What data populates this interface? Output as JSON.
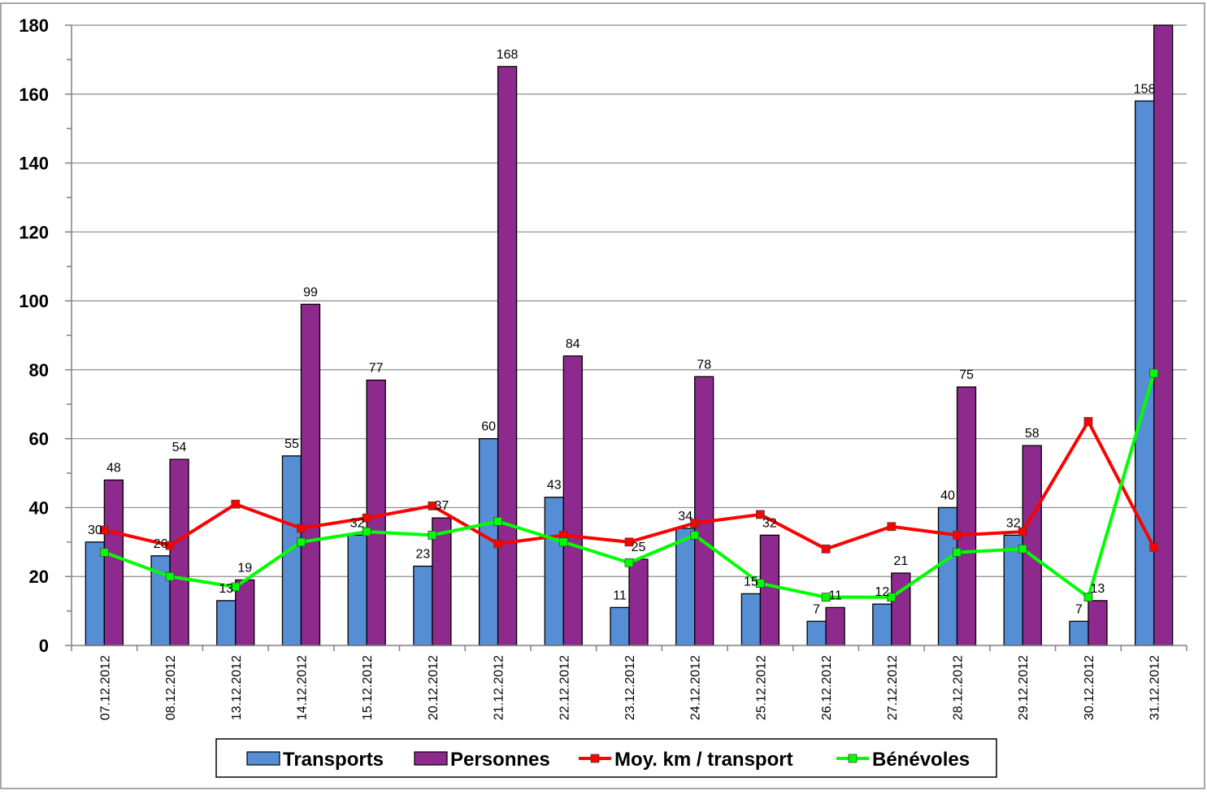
{
  "chart_data": {
    "type": "bar",
    "title": "",
    "xlabel": "",
    "ylabel": "",
    "ylim": [
      0,
      180
    ],
    "yticks": [
      0,
      20,
      40,
      60,
      80,
      100,
      120,
      140,
      160,
      180
    ],
    "ytick_labels": [
      "0",
      "20",
      "40",
      "60",
      "80",
      "100",
      "120",
      "140",
      "160",
      "180"
    ],
    "grid": true,
    "legend_position": "bottom",
    "categories": [
      "07.12.2012",
      "08.12.2012",
      "13.12.2012",
      "14.12.2012",
      "15.12.2012",
      "20.12.2012",
      "21.12.2012",
      "22.12.2012",
      "23.12.2012",
      "24.12.2012",
      "25.12.2012",
      "26.12.2012",
      "27.12.2012",
      "28.12.2012",
      "29.12.2012",
      "30.12.2012",
      "31.12.2012"
    ],
    "series": [
      {
        "name": "Transports",
        "kind": "bar",
        "color": "#558ED5",
        "values": [
          30,
          26,
          13,
          55,
          32,
          23,
          60,
          43,
          11,
          34,
          15,
          7,
          12,
          40,
          32,
          7,
          158
        ],
        "labels": [
          "30",
          "26",
          "13",
          "55",
          "32",
          "23",
          "60",
          "43",
          "11",
          "34",
          "15",
          "7",
          "12",
          "40",
          "32",
          "7",
          "158"
        ]
      },
      {
        "name": "Personnes",
        "kind": "bar",
        "color": "#8E2A8E",
        "values": [
          48,
          54,
          19,
          99,
          77,
          37,
          168,
          84,
          25,
          78,
          32,
          11,
          21,
          75,
          58,
          13,
          180
        ],
        "labels": [
          "48",
          "54",
          "19",
          "99",
          "77",
          "37",
          "168",
          "84",
          "25",
          "78",
          "32",
          "11",
          "21",
          "75",
          "58",
          "13",
          ""
        ]
      },
      {
        "name": "Moy. km / transport",
        "kind": "line",
        "color": "#FF0000",
        "values": [
          33.5,
          29,
          41,
          34,
          37,
          40.5,
          29.5,
          32,
          30,
          35.5,
          38,
          28,
          34.5,
          32,
          33,
          65,
          28.5
        ]
      },
      {
        "name": "Bénévoles",
        "kind": "line",
        "color": "#00FF00",
        "values": [
          27,
          20,
          17,
          30,
          33,
          32,
          36,
          30,
          24,
          32,
          18,
          14,
          14,
          27,
          28,
          14,
          79
        ]
      }
    ]
  }
}
